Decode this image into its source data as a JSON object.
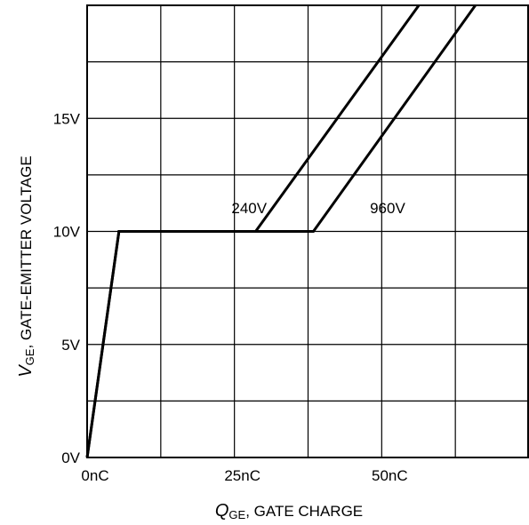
{
  "chart_data": {
    "type": "line",
    "title": "",
    "xlabel": {
      "symbol": "Q",
      "subscript": "GE",
      "text": ", GATE CHARGE"
    },
    "ylabel": {
      "symbol": "V",
      "subscript": "GE",
      "text": ", GATE-EMITTER VOLTAGE"
    },
    "xlim": [
      0,
      75
    ],
    "ylim": [
      0,
      20
    ],
    "x_grid": [
      0,
      12.5,
      25,
      37.5,
      50,
      62.5,
      75
    ],
    "y_grid": [
      0,
      2.5,
      5,
      7.5,
      10,
      12.5,
      15,
      17.5,
      20
    ],
    "grid": true,
    "x_ticks": [
      {
        "value": 0,
        "label": "0nC"
      },
      {
        "value": 25,
        "label": "25nC"
      },
      {
        "value": 50,
        "label": "50nC"
      }
    ],
    "y_ticks": [
      {
        "value": 0,
        "label": "0V"
      },
      {
        "value": 5,
        "label": "5V"
      },
      {
        "value": 10,
        "label": "10V"
      },
      {
        "value": 15,
        "label": "15V"
      }
    ],
    "series": [
      {
        "name": "240V",
        "label_at": [
          27.5,
          10.8
        ],
        "points": [
          [
            0,
            0
          ],
          [
            5.4,
            10
          ],
          [
            28.6,
            10
          ],
          [
            56.3,
            20
          ]
        ]
      },
      {
        "name": "960V",
        "label_at": [
          51,
          10.8
        ],
        "points": [
          [
            0,
            0
          ],
          [
            5.4,
            10
          ],
          [
            38.4,
            10
          ],
          [
            65.9,
            20
          ]
        ]
      }
    ]
  }
}
